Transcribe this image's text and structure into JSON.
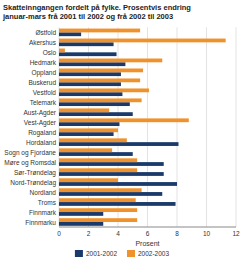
{
  "chart_data": {
    "type": "bar",
    "orientation": "horizontal",
    "title": "Skatteinngangen fordelt på fylke. Prosentvis endring\njanuar-mars frå 2001 til 2002 og frå 2002 til 2003",
    "categories": [
      "Østfold",
      "Akershus",
      "Oslo",
      "Hedmark",
      "Oppland",
      "Buskerud",
      "Vestfold",
      "Telemark",
      "Aust-Agder",
      "Vest-Agder",
      "Rogaland",
      "Hordaland",
      "Sogn og Fjordane",
      "Møre og Romsdal",
      "Sør-Trøndelag",
      "Nord-Trøndelag",
      "Nordland",
      "Troms",
      "Finnmark",
      "Finnmarku"
    ],
    "series": [
      {
        "name": "2001-2002",
        "color": "#1a3a6b",
        "values": [
          1.5,
          3.7,
          3.9,
          4.5,
          4.2,
          4.2,
          4.3,
          4.8,
          5.0,
          4.1,
          3.7,
          8.1,
          5.0,
          7.1,
          7.1,
          8.0,
          7.0,
          7.9,
          3.0,
          3.0
        ]
      },
      {
        "name": "2002-2003",
        "color": "#f0922b",
        "values": [
          5.5,
          11.3,
          0.4,
          7.0,
          5.7,
          5.5,
          6.1,
          5.6,
          3.4,
          8.8,
          4.0,
          4.6,
          3.6,
          5.3,
          5.3,
          4.0,
          5.6,
          5.2,
          5.3,
          5.3
        ]
      }
    ],
    "xlabel": "Prosent",
    "xlim": [
      0,
      12
    ],
    "xticks": [
      0,
      2,
      4,
      6,
      8,
      10,
      12
    ],
    "grid": true,
    "legend": "bottom"
  }
}
